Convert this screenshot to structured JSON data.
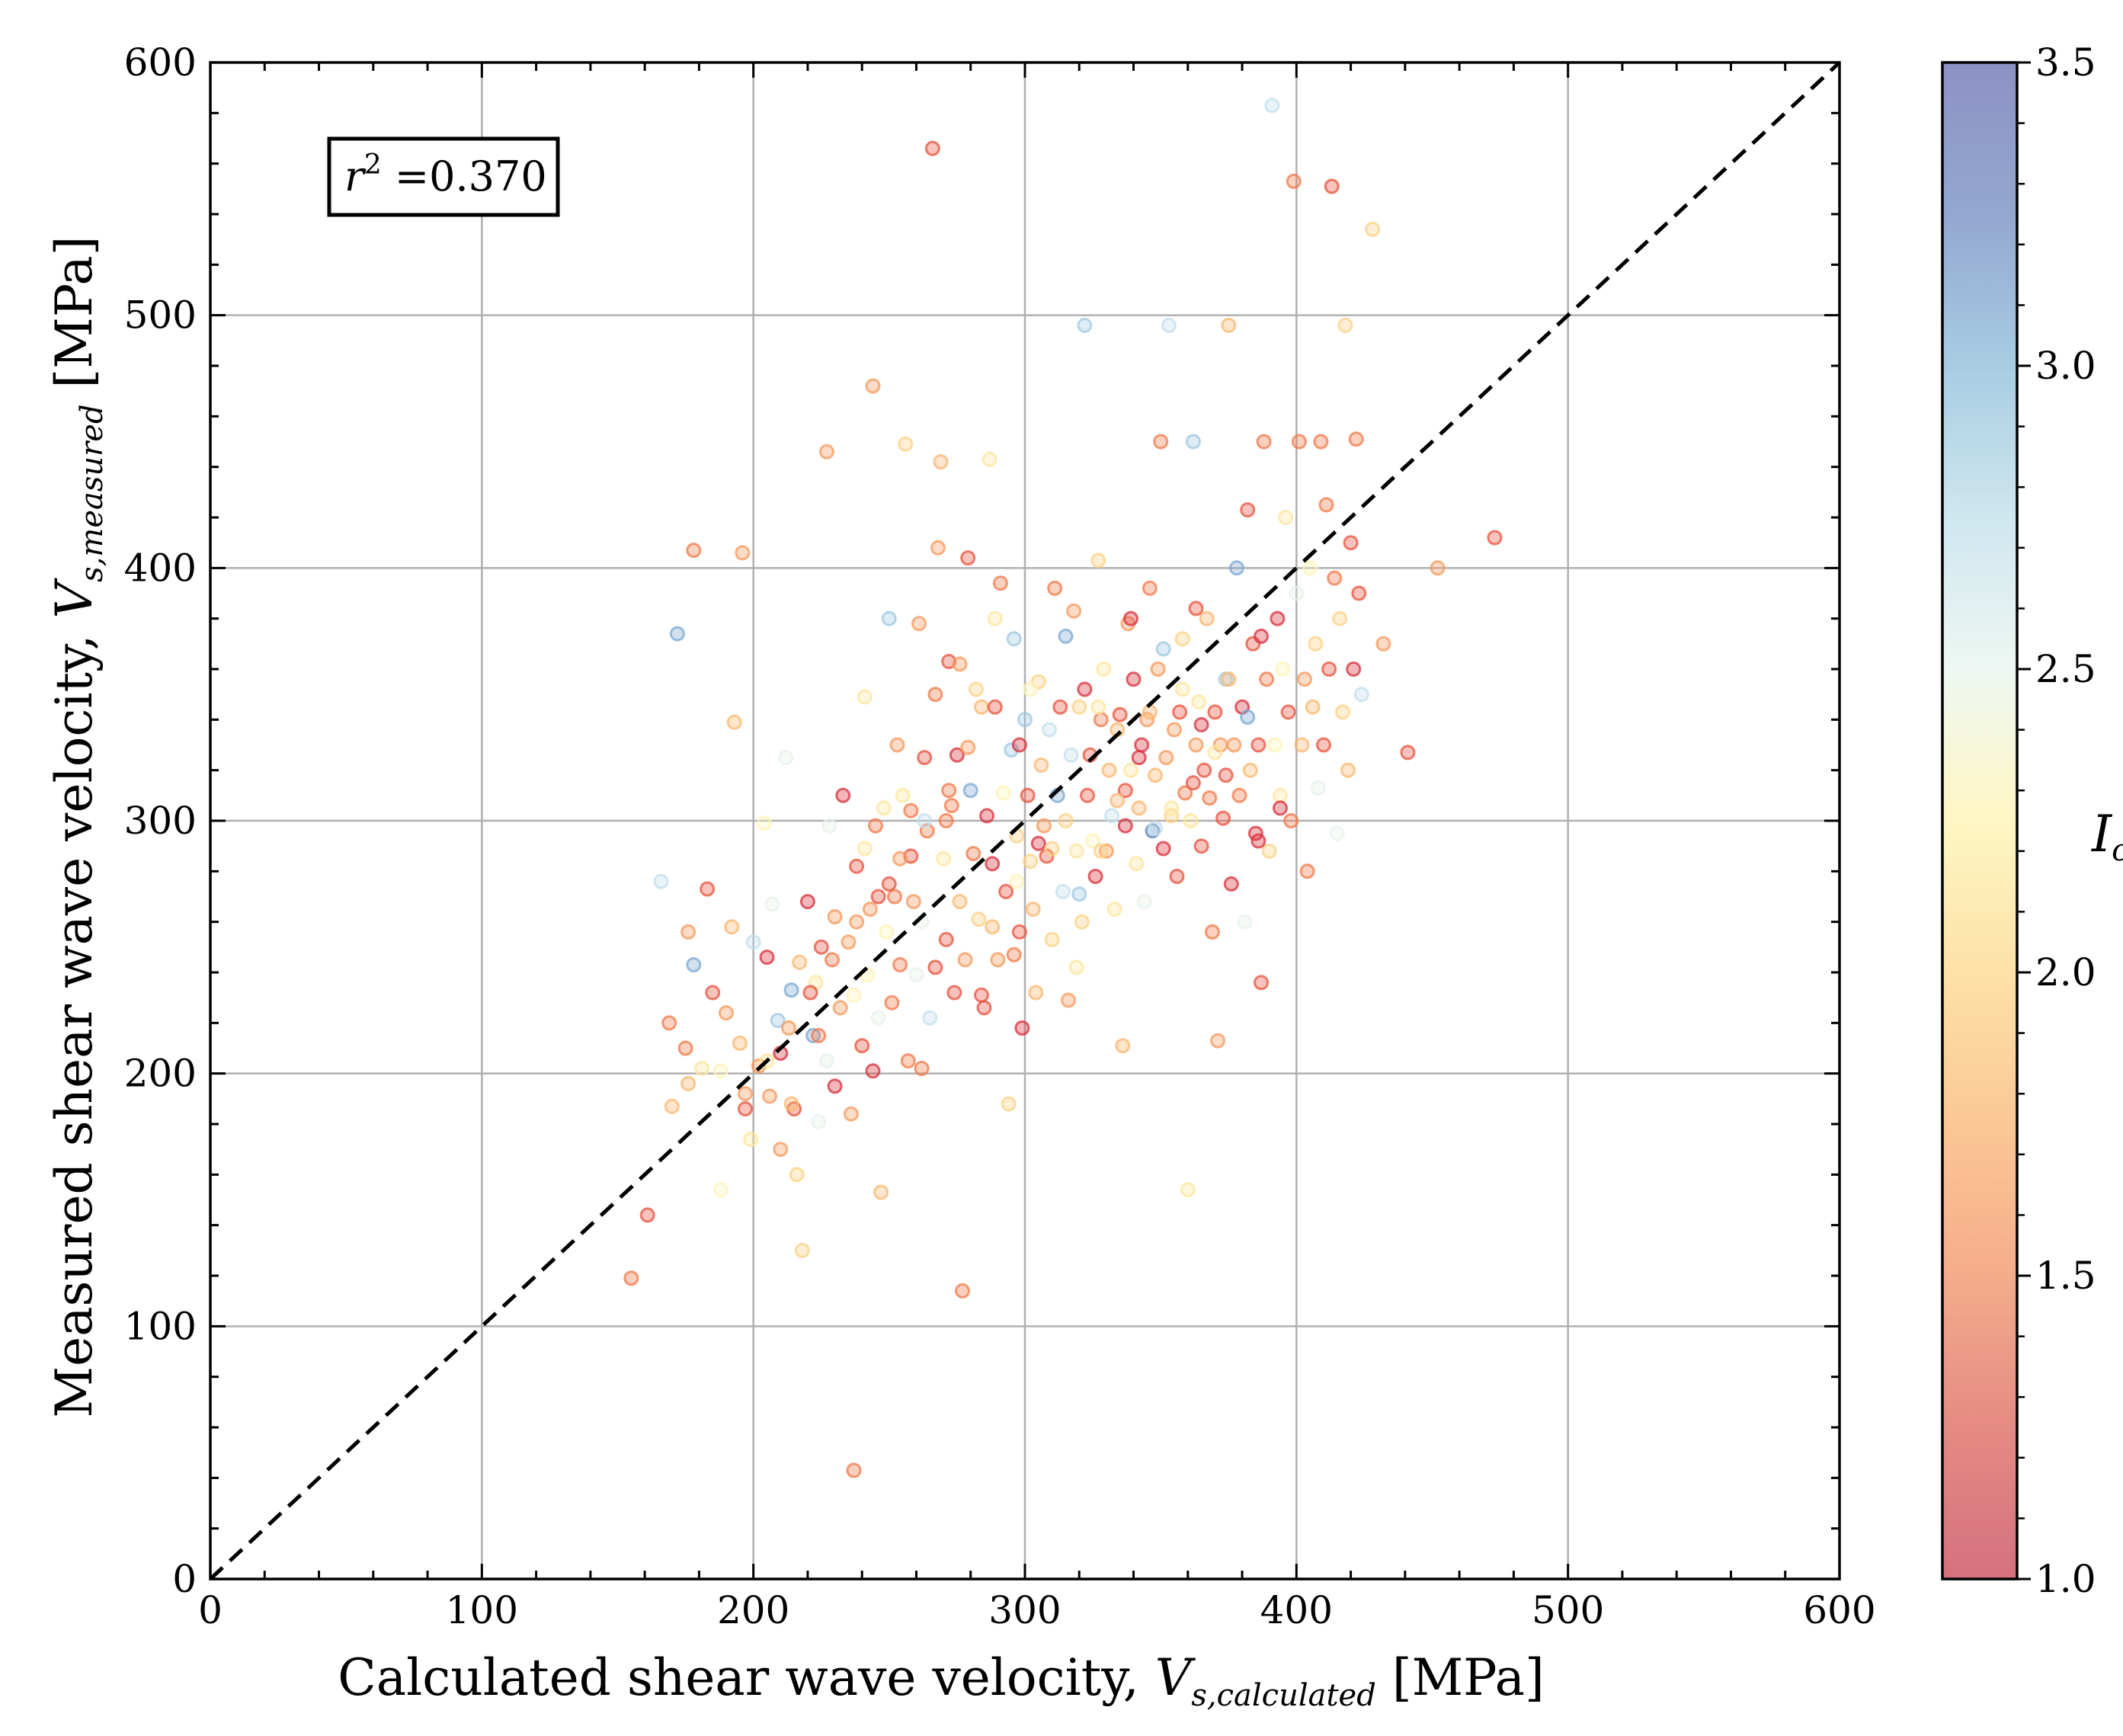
{
  "chart_data": {
    "type": "scatter",
    "xlabel": "Calculated shear wave velocity, ",
    "xlabel_var": "V",
    "xlabel_sub": "s,calculated",
    "xlabel_unit": " [MPa]",
    "ylabel": "Measured shear wave velocity, ",
    "ylabel_var": "V",
    "ylabel_sub": "s,measured",
    "ylabel_unit": " [MPa]",
    "xlim": [
      0,
      600
    ],
    "ylim": [
      0,
      600
    ],
    "xticks": [
      "0",
      "100",
      "200",
      "300",
      "400",
      "500",
      "600"
    ],
    "yticks": [
      "0",
      "100",
      "200",
      "300",
      "400",
      "500",
      "600"
    ],
    "grid": true,
    "annotation": {
      "var": "r",
      "sup": "2",
      "text": " =0.370"
    },
    "reference_line": {
      "x": [
        0,
        600
      ],
      "y": [
        0,
        600
      ],
      "style": "dashed",
      "color": "#000000"
    },
    "colorbar": {
      "label": "I",
      "label_sub": "c",
      "range": [
        1.0,
        3.5
      ],
      "ticks": [
        "1.0",
        "1.5",
        "2.0",
        "2.5",
        "3.0",
        "3.5"
      ],
      "colormap": "RdYlBu",
      "alpha": 0.55
    },
    "series": [
      {
        "points": [
          [
            155,
            119
          ],
          [
            161,
            144
          ],
          [
            166,
            276
          ],
          [
            170,
            187
          ],
          [
            175,
            210
          ],
          [
            176,
            256
          ],
          [
            178,
            243
          ],
          [
            183,
            273
          ],
          [
            185,
            232
          ],
          [
            188,
            201
          ],
          [
            190,
            224
          ],
          [
            192,
            258
          ],
          [
            193,
            339
          ],
          [
            195,
            212
          ],
          [
            197,
            186
          ],
          [
            199,
            174
          ],
          [
            200,
            252
          ],
          [
            202,
            203
          ],
          [
            204,
            299
          ],
          [
            205,
            246
          ],
          [
            206,
            191
          ],
          [
            207,
            267
          ],
          [
            209,
            221
          ],
          [
            210,
            208
          ],
          [
            212,
            325
          ],
          [
            214,
            233
          ],
          [
            215,
            186
          ],
          [
            216,
            160
          ],
          [
            217,
            244
          ],
          [
            218,
            130
          ],
          [
            220,
            268
          ],
          [
            222,
            215
          ],
          [
            223,
            236
          ],
          [
            224,
            181
          ],
          [
            225,
            250
          ],
          [
            227,
            446
          ],
          [
            227,
            205
          ],
          [
            228,
            298
          ],
          [
            230,
            262
          ],
          [
            232,
            226
          ],
          [
            233,
            310
          ],
          [
            235,
            252
          ],
          [
            236,
            184
          ],
          [
            238,
            282
          ],
          [
            240,
            211
          ],
          [
            241,
            349
          ],
          [
            242,
            239
          ],
          [
            243,
            265
          ],
          [
            244,
            472
          ],
          [
            245,
            298
          ],
          [
            246,
            222
          ],
          [
            247,
            153
          ],
          [
            248,
            305
          ],
          [
            249,
            256
          ],
          [
            250,
            380
          ],
          [
            251,
            228
          ],
          [
            252,
            270
          ],
          [
            253,
            330
          ],
          [
            254,
            243
          ],
          [
            255,
            310
          ],
          [
            256,
            449
          ],
          [
            257,
            205
          ],
          [
            258,
            286
          ],
          [
            259,
            268
          ],
          [
            260,
            239
          ],
          [
            261,
            378
          ],
          [
            262,
            260
          ],
          [
            263,
            325
          ],
          [
            264,
            296
          ],
          [
            265,
            222
          ],
          [
            266,
            566
          ],
          [
            267,
            350
          ],
          [
            268,
            408
          ],
          [
            269,
            442
          ],
          [
            270,
            285
          ],
          [
            271,
            253
          ],
          [
            272,
            363
          ],
          [
            273,
            306
          ],
          [
            274,
            232
          ],
          [
            275,
            326
          ],
          [
            276,
            268
          ],
          [
            277,
            114
          ],
          [
            278,
            245
          ],
          [
            279,
            404
          ],
          [
            280,
            312
          ],
          [
            281,
            287
          ],
          [
            282,
            352
          ],
          [
            283,
            261
          ],
          [
            284,
            345
          ],
          [
            285,
            226
          ],
          [
            286,
            302
          ],
          [
            287,
            443
          ],
          [
            288,
            283
          ],
          [
            289,
            345
          ],
          [
            290,
            245
          ],
          [
            291,
            394
          ],
          [
            292,
            311
          ],
          [
            293,
            272
          ],
          [
            294,
            188
          ],
          [
            295,
            328
          ],
          [
            296,
            372
          ],
          [
            297,
            294
          ],
          [
            298,
            256
          ],
          [
            299,
            218
          ],
          [
            300,
            340
          ],
          [
            301,
            310
          ],
          [
            302,
            284
          ],
          [
            303,
            265
          ],
          [
            304,
            232
          ],
          [
            305,
            355
          ],
          [
            306,
            322
          ],
          [
            307,
            298
          ],
          [
            308,
            286
          ],
          [
            309,
            336
          ],
          [
            310,
            253
          ],
          [
            311,
            392
          ],
          [
            312,
            310
          ],
          [
            313,
            345
          ],
          [
            314,
            272
          ],
          [
            315,
            300
          ],
          [
            316,
            229
          ],
          [
            317,
            326
          ],
          [
            318,
            383
          ],
          [
            319,
            288
          ],
          [
            320,
            345
          ],
          [
            321,
            260
          ],
          [
            322,
            496
          ],
          [
            323,
            310
          ],
          [
            324,
            326
          ],
          [
            325,
            292
          ],
          [
            326,
            278
          ],
          [
            327,
            403
          ],
          [
            328,
            340
          ],
          [
            329,
            360
          ],
          [
            330,
            288
          ],
          [
            331,
            320
          ],
          [
            332,
            302
          ],
          [
            333,
            265
          ],
          [
            334,
            336
          ],
          [
            335,
            342
          ],
          [
            336,
            211
          ],
          [
            337,
            298
          ],
          [
            338,
            378
          ],
          [
            339,
            320
          ],
          [
            340,
            356
          ],
          [
            341,
            283
          ],
          [
            342,
            305
          ],
          [
            343,
            330
          ],
          [
            344,
            268
          ],
          [
            345,
            340
          ],
          [
            346,
            392
          ],
          [
            347,
            296
          ],
          [
            348,
            318
          ],
          [
            349,
            360
          ],
          [
            350,
            450
          ],
          [
            351,
            289
          ],
          [
            352,
            325
          ],
          [
            353,
            496
          ],
          [
            354,
            302
          ],
          [
            355,
            336
          ],
          [
            356,
            278
          ],
          [
            357,
            343
          ],
          [
            358,
            372
          ],
          [
            359,
            311
          ],
          [
            360,
            154
          ],
          [
            361,
            300
          ],
          [
            362,
            450
          ],
          [
            363,
            330
          ],
          [
            364,
            347
          ],
          [
            365,
            290
          ],
          [
            366,
            320
          ],
          [
            367,
            380
          ],
          [
            368,
            309
          ],
          [
            369,
            256
          ],
          [
            370,
            343
          ],
          [
            371,
            213
          ],
          [
            372,
            330
          ],
          [
            373,
            301
          ],
          [
            374,
            356
          ],
          [
            375,
            496
          ],
          [
            376,
            275
          ],
          [
            377,
            330
          ],
          [
            378,
            400
          ],
          [
            379,
            310
          ],
          [
            380,
            345
          ],
          [
            381,
            260
          ],
          [
            382,
            423
          ],
          [
            383,
            320
          ],
          [
            384,
            370
          ],
          [
            385,
            295
          ],
          [
            386,
            330
          ],
          [
            387,
            236
          ],
          [
            388,
            450
          ],
          [
            389,
            356
          ],
          [
            390,
            288
          ],
          [
            391,
            583
          ],
          [
            392,
            330
          ],
          [
            393,
            380
          ],
          [
            394,
            310
          ],
          [
            395,
            360
          ],
          [
            396,
            420
          ],
          [
            397,
            343
          ],
          [
            398,
            300
          ],
          [
            399,
            553
          ],
          [
            400,
            390
          ],
          [
            401,
            450
          ],
          [
            402,
            330
          ],
          [
            403,
            356
          ],
          [
            404,
            280
          ],
          [
            405,
            400
          ],
          [
            406,
            345
          ],
          [
            407,
            370
          ],
          [
            408,
            313
          ],
          [
            409,
            450
          ],
          [
            410,
            330
          ],
          [
            411,
            425
          ],
          [
            412,
            360
          ],
          [
            413,
            551
          ],
          [
            414,
            396
          ],
          [
            415,
            295
          ],
          [
            416,
            380
          ],
          [
            417,
            343
          ],
          [
            418,
            496
          ],
          [
            419,
            320
          ],
          [
            420,
            410
          ],
          [
            421,
            360
          ],
          [
            422,
            451
          ],
          [
            423,
            390
          ],
          [
            424,
            350
          ],
          [
            428,
            534
          ],
          [
            432,
            370
          ],
          [
            441,
            327
          ],
          [
            452,
            400
          ],
          [
            473,
            412
          ],
          [
            172,
            374
          ],
          [
            178,
            407
          ],
          [
            196,
            406
          ],
          [
            237,
            43
          ],
          [
            181,
            202
          ],
          [
            188,
            154
          ],
          [
            169,
            220
          ],
          [
            176,
            196
          ],
          [
            210,
            170
          ],
          [
            230,
            195
          ],
          [
            214,
            188
          ],
          [
            244,
            201
          ],
          [
            262,
            202
          ],
          [
            224,
            215
          ],
          [
            237,
            231
          ],
          [
            250,
            275
          ],
          [
            267,
            242
          ],
          [
            284,
            231
          ],
          [
            258,
            304
          ],
          [
            241,
            289
          ],
          [
            271,
            300
          ],
          [
            296,
            247
          ],
          [
            319,
            242
          ],
          [
            279,
            329
          ],
          [
            305,
            291
          ],
          [
            297,
            276
          ],
          [
            320,
            271
          ],
          [
            337,
            312
          ],
          [
            328,
            288
          ],
          [
            354,
            305
          ],
          [
            342,
            325
          ],
          [
            365,
            338
          ],
          [
            348,
            297
          ],
          [
            374,
            318
          ],
          [
            386,
            292
          ],
          [
            362,
            315
          ],
          [
            272,
            312
          ],
          [
            263,
            300
          ],
          [
            254,
            285
          ],
          [
            246,
            270
          ],
          [
            238,
            260
          ],
          [
            229,
            245
          ],
          [
            221,
            232
          ],
          [
            213,
            218
          ],
          [
            205,
            205
          ],
          [
            197,
            192
          ],
          [
            288,
            258
          ],
          [
            310,
            289
          ],
          [
            298,
            330
          ],
          [
            322,
            352
          ],
          [
            334,
            308
          ],
          [
            346,
            343
          ],
          [
            358,
            352
          ],
          [
            370,
            327
          ],
          [
            382,
            341
          ],
          [
            394,
            305
          ],
          [
            276,
            362
          ],
          [
            289,
            380
          ],
          [
            302,
            352
          ],
          [
            315,
            373
          ],
          [
            327,
            345
          ],
          [
            339,
            380
          ],
          [
            351,
            368
          ],
          [
            363,
            384
          ],
          [
            375,
            356
          ],
          [
            387,
            373
          ]
        ]
      }
    ]
  }
}
